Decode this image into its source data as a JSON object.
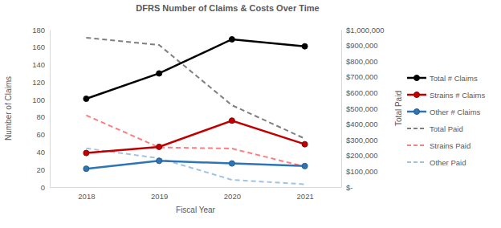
{
  "chart_data": {
    "type": "line",
    "title": "DFRS Number of Claims & Costs Over Time",
    "x_label": "Fiscal Year",
    "y_label": "Number of Claims",
    "y2_label": "Total Paid",
    "categories": [
      "2018",
      "2019",
      "2020",
      "2021"
    ],
    "ylim": [
      0,
      180
    ],
    "yticks": [
      0,
      20,
      40,
      60,
      80,
      100,
      120,
      140,
      160,
      180
    ],
    "y2lim": [
      0,
      1000000
    ],
    "y2ticks": [
      {
        "value": 0,
        "label": "$-"
      },
      {
        "value": 100000,
        "label": "$100,000"
      },
      {
        "value": 200000,
        "label": "$200,000"
      },
      {
        "value": 300000,
        "label": "$300,000"
      },
      {
        "value": 400000,
        "label": "$400,000"
      },
      {
        "value": 500000,
        "label": "$500,000"
      },
      {
        "value": 600000,
        "label": "$600,000"
      },
      {
        "value": 700000,
        "label": "$700,000"
      },
      {
        "value": 800000,
        "label": "$800,000"
      },
      {
        "value": 900000,
        "label": "$900,000"
      },
      {
        "value": 1000000,
        "label": "$1,000,000"
      }
    ],
    "grid": false,
    "legend": "right",
    "series": [
      {
        "name": "Total # Claims",
        "color": "#000000",
        "marker": "circle",
        "line_style": "solid",
        "values": [
          101,
          130,
          169,
          161
        ]
      },
      {
        "name": "Strains # Claims",
        "color": "#c00000",
        "marker": "circle",
        "line_style": "solid",
        "values": [
          39,
          46,
          76,
          49
        ]
      },
      {
        "name": "Other # Claims",
        "color": "#2e75b6",
        "marker": "circle",
        "line_style": "solid",
        "values": [
          21,
          30,
          27,
          24
        ]
      },
      {
        "name": "Total Paid",
        "color": "#7f7f7f",
        "marker": "none",
        "line_style": "dashed",
        "axis": "y2",
        "values": [
          949000,
          903000,
          520000,
          308000
        ]
      },
      {
        "name": "Strains Paid",
        "color": "#ff7c80",
        "marker": "none",
        "line_style": "dashed",
        "axis": "y2",
        "values": [
          456000,
          252000,
          245000,
          130000
        ]
      },
      {
        "name": "Other Paid",
        "color": "#9dc3e6",
        "marker": "none",
        "line_style": "dashed",
        "axis": "y2",
        "values": [
          246000,
          183000,
          46000,
          18000
        ]
      }
    ]
  }
}
